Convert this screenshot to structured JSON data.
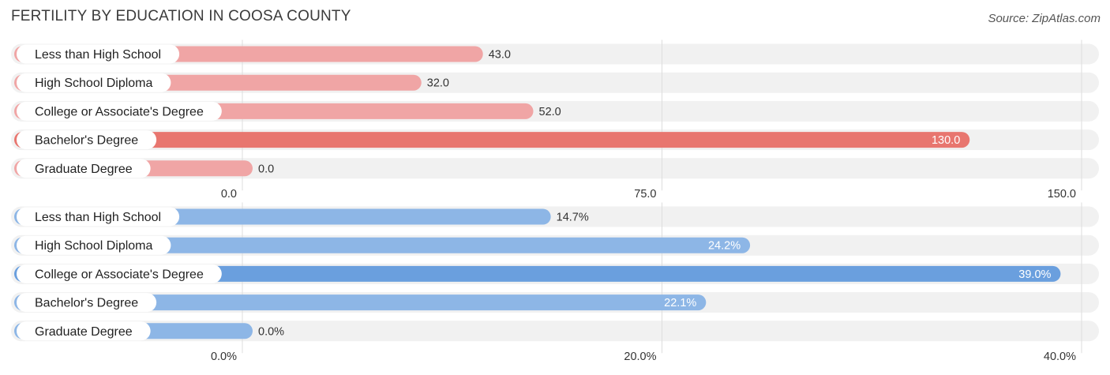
{
  "title": "FERTILITY BY EDUCATION IN COOSA COUNTY",
  "source": "Source: ZipAtlas.com",
  "colors": {
    "top_bar": "#f0a5a5",
    "top_bar_highlight": "#e8766f",
    "bottom_bar": "#8db6e6",
    "bottom_bar_highlight": "#6a9fde",
    "track": "#f1f1f1",
    "grid": "#dddddd"
  },
  "chart_data": [
    {
      "type": "bar",
      "orientation": "horizontal",
      "categories": [
        "Less than High School",
        "High School Diploma",
        "College or Associate's Degree",
        "Bachelor's Degree",
        "Graduate Degree"
      ],
      "values": [
        43.0,
        32.0,
        52.0,
        130.0,
        0.0
      ],
      "value_labels": [
        "43.0",
        "32.0",
        "52.0",
        "130.0",
        "0.0"
      ],
      "highlight_index": 3,
      "xlim": [
        0,
        150
      ],
      "ticks": [
        0,
        75,
        150
      ],
      "tick_labels": [
        "0.0",
        "75.0",
        "150.0"
      ]
    },
    {
      "type": "bar",
      "orientation": "horizontal",
      "categories": [
        "Less than High School",
        "High School Diploma",
        "College or Associate's Degree",
        "Bachelor's Degree",
        "Graduate Degree"
      ],
      "values": [
        14.7,
        24.2,
        39.0,
        22.1,
        0.0
      ],
      "value_labels": [
        "14.7%",
        "24.2%",
        "39.0%",
        "22.1%",
        "0.0%"
      ],
      "highlight_index": 2,
      "xlim": [
        0,
        40
      ],
      "ticks": [
        0,
        20,
        40
      ],
      "tick_labels": [
        "0.0%",
        "20.0%",
        "40.0%"
      ]
    }
  ]
}
